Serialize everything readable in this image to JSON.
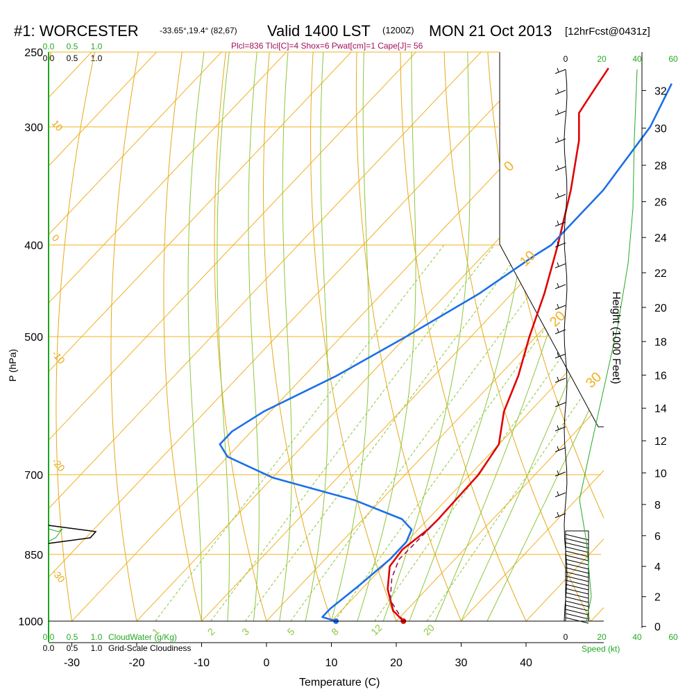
{
  "header": {
    "station": "#1: WORCESTER",
    "coords": "-33.65°,19.4° (82,67)",
    "valid": "Valid 1400 LST",
    "valid_utc": "(1200Z)",
    "date": "MON 21 Oct 2013",
    "fcst": "[12hrFcst@0431z]",
    "indices": "Plcl=836 Tlcl[C]=4 Shox=6 Pwat[cm]=1 Cape[J]= 56"
  },
  "scales": {
    "cloudwater_ticks": [
      "0.0",
      "0.5",
      "1.0"
    ],
    "cloudiness_ticks": [
      "0.0",
      "0.5",
      "1.0"
    ],
    "cloudwater_label": "CloudWater (g/Kg)",
    "cloudiness_label": "Grid-Scale Cloudiness",
    "speed_ticks": [
      "0",
      "20",
      "40",
      "60"
    ],
    "speed_label": "Speed (kt)"
  },
  "colors": {
    "temperature": "#e00000",
    "dewpoint": "#1a6fe8",
    "parcel": "#8b1a5a",
    "isotherm": "#f2b020",
    "dry_adiabat": "#e6a818",
    "moist_adiabat": "#8cc63a",
    "mixing_ratio": "#8cc63a",
    "green_text": "#22aa22",
    "indices_text": "#a0105a"
  },
  "chart_data": {
    "type": "line",
    "title": "#1: WORCESTER",
    "xlabel": "Temperature (C)",
    "ylabel": "P (hPa)",
    "y2label": "Height (1000 Feet)",
    "x_ticks": [
      "-30",
      "-20",
      "-10",
      "0",
      "10",
      "20",
      "30",
      "40"
    ],
    "y_ticks": [
      "250",
      "300",
      "400",
      "500",
      "700",
      "850",
      "1000"
    ],
    "height_ticks": [
      "0",
      "2",
      "4",
      "6",
      "8",
      "10",
      "12",
      "14",
      "16",
      "18",
      "20",
      "22",
      "24",
      "26",
      "28",
      "30",
      "32"
    ],
    "xlim": [
      -34,
      36
    ],
    "ylim": [
      1000,
      250
    ],
    "mixing_ratio_labels": [
      "1",
      "2",
      "3",
      "5",
      "8",
      "12",
      "20"
    ],
    "isotherm_labels": [
      "0",
      "10",
      "20",
      "30"
    ],
    "dry_adiabat_labels": [
      "10",
      "0",
      "-10",
      "-20",
      "-30"
    ],
    "series": [
      {
        "name": "Temperature",
        "points": [
          [
            21.1,
            1000
          ],
          [
            18,
            975
          ],
          [
            14,
            925
          ],
          [
            11,
            875
          ],
          [
            10.5,
            840
          ],
          [
            11.5,
            800
          ],
          [
            11.6,
            780
          ],
          [
            11.3,
            700
          ],
          [
            10,
            650
          ],
          [
            6,
            600
          ],
          [
            3,
            550
          ],
          [
            -1,
            500
          ],
          [
            -5,
            450
          ],
          [
            -10,
            400
          ],
          [
            -16,
            350
          ],
          [
            -22,
            310
          ],
          [
            -26,
            290
          ],
          [
            -27,
            275
          ],
          [
            -28,
            260
          ]
        ]
      },
      {
        "name": "Dewpoint",
        "points": [
          [
            10.7,
            1000
          ],
          [
            8,
            990
          ],
          [
            8,
            970
          ],
          [
            9,
            920
          ],
          [
            10,
            860
          ],
          [
            10,
            825
          ],
          [
            9,
            800
          ],
          [
            6,
            780
          ],
          [
            -4,
            745
          ],
          [
            -20,
            705
          ],
          [
            -30,
            670
          ],
          [
            -33,
            650
          ],
          [
            -33,
            630
          ],
          [
            -31,
            600
          ],
          [
            -25,
            550
          ],
          [
            -20,
            500
          ],
          [
            -15,
            450
          ],
          [
            -12,
            410
          ],
          [
            -11,
            400
          ],
          [
            -11,
            350
          ],
          [
            -13,
            300
          ],
          [
            -16,
            270
          ]
        ]
      },
      {
        "name": "Parcel",
        "points": [
          [
            21.1,
            1000
          ],
          [
            16,
            950
          ],
          [
            13,
            900
          ],
          [
            11.4,
            860
          ],
          [
            11.5,
            836
          ],
          [
            11.6,
            790
          ]
        ]
      }
    ],
    "markers": [
      {
        "name": "surface-temperature",
        "x": 21.1,
        "p": 1000
      },
      {
        "name": "surface-dewpoint",
        "x": 10.7,
        "p": 1000
      }
    ]
  }
}
